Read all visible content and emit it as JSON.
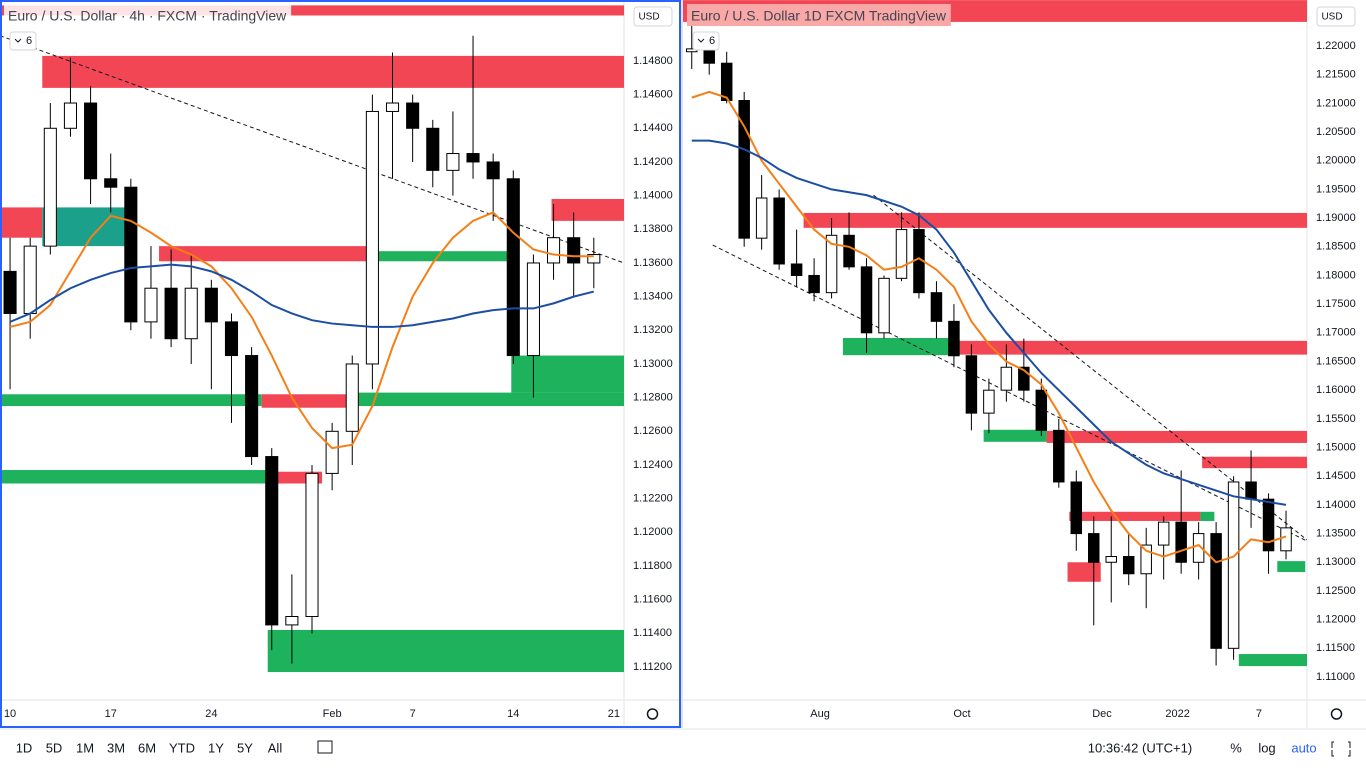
{
  "chart_data": [
    {
      "type": "candlestick",
      "title": "Euro / U.S. Dollar · 4h · FXCM · TradingView",
      "currency": "USD",
      "badge": "6",
      "xlim": [
        -0.5,
        30.5
      ],
      "xticks": [
        {
          "value": 0,
          "label": "10"
        },
        {
          "value": 5,
          "label": "17"
        },
        {
          "value": 10,
          "label": "24"
        },
        {
          "value": 16,
          "label": "Feb"
        },
        {
          "value": 20,
          "label": "7"
        },
        {
          "value": 25,
          "label": "14"
        },
        {
          "value": 30,
          "label": "21"
        }
      ],
      "ylim": [
        1.11004,
        1.15162
      ],
      "yticks": [
        {
          "value": 1.148,
          "label": "1.14800"
        },
        {
          "value": 1.146,
          "label": "1.14600"
        },
        {
          "value": 1.144,
          "label": "1.14400"
        },
        {
          "value": 1.142,
          "label": "1.14200"
        },
        {
          "value": 1.14,
          "label": "1.14000"
        },
        {
          "value": 1.138,
          "label": "1.13800"
        },
        {
          "value": 1.136,
          "label": "1.13600"
        },
        {
          "value": 1.134,
          "label": "1.13400"
        },
        {
          "value": 1.132,
          "label": "1.13200"
        },
        {
          "value": 1.13,
          "label": "1.13000"
        },
        {
          "value": 1.128,
          "label": "1.12800"
        },
        {
          "value": 1.126,
          "label": "1.12600"
        },
        {
          "value": 1.124,
          "label": "1.12400"
        },
        {
          "value": 1.122,
          "label": "1.12200"
        },
        {
          "value": 1.12,
          "label": "1.12000"
        },
        {
          "value": 1.118,
          "label": "1.11800"
        },
        {
          "value": 1.116,
          "label": "1.11600"
        },
        {
          "value": 1.114,
          "label": "1.11400"
        },
        {
          "value": 1.112,
          "label": "1.11200"
        }
      ],
      "up_color": "#ffffff",
      "down_color": "#000000",
      "x": [
        0,
        1,
        2,
        3,
        4,
        5,
        6,
        7,
        8,
        9,
        10,
        11,
        12,
        13,
        14,
        15,
        16,
        17,
        18,
        19,
        20,
        21,
        22,
        23,
        24,
        25,
        26,
        27,
        28,
        29
      ],
      "open": [
        1.1355,
        1.133,
        1.137,
        1.144,
        1.1455,
        1.141,
        1.1405,
        1.1325,
        1.1345,
        1.1315,
        1.1345,
        1.1325,
        1.1305,
        1.1245,
        1.1145,
        1.115,
        1.1235,
        1.126,
        1.13,
        1.145,
        1.1455,
        1.144,
        1.1415,
        1.1425,
        1.142,
        1.141,
        1.1305,
        1.136,
        1.1375,
        1.136
      ],
      "high": [
        1.1375,
        1.1375,
        1.1455,
        1.1482,
        1.1465,
        1.1425,
        1.141,
        1.137,
        1.1368,
        1.1365,
        1.135,
        1.133,
        1.131,
        1.125,
        1.1175,
        1.124,
        1.1265,
        1.1305,
        1.146,
        1.1485,
        1.146,
        1.1445,
        1.145,
        1.1495,
        1.1425,
        1.1415,
        1.1365,
        1.1395,
        1.139,
        1.1375
      ],
      "low": [
        1.1285,
        1.1315,
        1.1365,
        1.1435,
        1.1395,
        1.139,
        1.132,
        1.1315,
        1.131,
        1.13,
        1.1285,
        1.1265,
        1.124,
        1.113,
        1.1122,
        1.114,
        1.1225,
        1.124,
        1.1285,
        1.141,
        1.142,
        1.1405,
        1.14,
        1.141,
        1.1385,
        1.13,
        1.128,
        1.135,
        1.134,
        1.1345
      ],
      "close": [
        1.133,
        1.137,
        1.144,
        1.1455,
        1.141,
        1.1405,
        1.1325,
        1.1345,
        1.1315,
        1.1345,
        1.1325,
        1.1305,
        1.1245,
        1.1145,
        1.115,
        1.1235,
        1.126,
        1.13,
        1.145,
        1.1455,
        1.144,
        1.1415,
        1.1425,
        1.142,
        1.141,
        1.1305,
        1.136,
        1.1375,
        1.136,
        1.1365
      ],
      "series": [
        {
          "color": "#f57f17",
          "values": [
            1.1322,
            1.1325,
            1.1335,
            1.1355,
            1.1375,
            1.1388,
            1.1385,
            1.1378,
            1.137,
            1.1365,
            1.1358,
            1.1345,
            1.1328,
            1.1305,
            1.128,
            1.1262,
            1.125,
            1.1252,
            1.1275,
            1.131,
            1.134,
            1.136,
            1.1375,
            1.1385,
            1.139,
            1.1378,
            1.1368,
            1.1365,
            1.1364,
            1.1364
          ]
        },
        {
          "color": "#1c4ea3",
          "values": [
            1.1325,
            1.133,
            1.1338,
            1.1345,
            1.135,
            1.1354,
            1.1357,
            1.1358,
            1.1359,
            1.1358,
            1.1355,
            1.135,
            1.1343,
            1.1335,
            1.133,
            1.1326,
            1.1324,
            1.1323,
            1.1322,
            1.1322,
            1.1323,
            1.1325,
            1.1327,
            1.133,
            1.1332,
            1.1333,
            1.1333,
            1.1336,
            1.134,
            1.1343
          ]
        }
      ],
      "zones": [
        {
          "x": [
            -0.5,
            30.5
          ],
          "y": [
            1.1507,
            1.1513
          ],
          "color": "#f23645"
        },
        {
          "x": [
            1.6,
            30.5
          ],
          "y": [
            1.1464,
            1.1483
          ],
          "color": "#f23645"
        },
        {
          "x": [
            -0.5,
            1.6
          ],
          "y": [
            1.1375,
            1.1393
          ],
          "color": "#f23645"
        },
        {
          "x": [
            1.6,
            6.1
          ],
          "y": [
            1.137,
            1.1393
          ],
          "color": "#089981"
        },
        {
          "x": [
            7.4,
            18.3
          ],
          "y": [
            1.1361,
            1.137
          ],
          "color": "#f23645"
        },
        {
          "x": [
            18.3,
            24.7
          ],
          "y": [
            1.1361,
            1.1367
          ],
          "color": "#0bab4f"
        },
        {
          "x": [
            26.9,
            30.5
          ],
          "y": [
            1.1385,
            1.1398
          ],
          "color": "#f23645"
        },
        {
          "x": [
            24.9,
            30.5
          ],
          "y": [
            1.1283,
            1.1305
          ],
          "color": "#0bab4f"
        },
        {
          "x": [
            -0.5,
            12.5
          ],
          "y": [
            1.1275,
            1.1282
          ],
          "color": "#0bab4f"
        },
        {
          "x": [
            12.5,
            17.0
          ],
          "y": [
            1.1274,
            1.1282
          ],
          "color": "#f23645"
        },
        {
          "x": [
            17.1,
            30.5
          ],
          "y": [
            1.1275,
            1.1283
          ],
          "color": "#0bab4f"
        },
        {
          "x": [
            -0.5,
            12.7
          ],
          "y": [
            1.1229,
            1.1237
          ],
          "color": "#0bab4f"
        },
        {
          "x": [
            12.9,
            15.5
          ],
          "y": [
            1.1229,
            1.1236
          ],
          "color": "#f23645"
        },
        {
          "x": [
            12.8,
            30.5
          ],
          "y": [
            1.1117,
            1.1142
          ],
          "color": "#0bab4f"
        }
      ],
      "trendlines": [
        {
          "x": [
            -0.5,
            30.5
          ],
          "y": [
            1.1495,
            1.136
          ]
        }
      ]
    },
    {
      "type": "candlestick",
      "title": "Euro / U.S. Dollar  1D  FXCM  TradingView",
      "currency": "USD",
      "badge": "6",
      "xlim": [
        -0.5,
        35.2
      ],
      "xticks": [
        {
          "value": 7.34,
          "label": "Aug"
        },
        {
          "value": 15.46,
          "label": "Oct"
        },
        {
          "value": 23.47,
          "label": "Dec"
        },
        {
          "value": 27.8,
          "label": "2022"
        },
        {
          "value": 32.45,
          "label": "7"
        }
      ],
      "ylim": [
        1.10599,
        1.22802
      ],
      "yticks": [
        {
          "value": 1.22,
          "label": "1.22000"
        },
        {
          "value": 1.215,
          "label": "1.21500"
        },
        {
          "value": 1.21,
          "label": "1.21000"
        },
        {
          "value": 1.205,
          "label": "1.20500"
        },
        {
          "value": 1.2,
          "label": "1.20000"
        },
        {
          "value": 1.195,
          "label": "1.19500"
        },
        {
          "value": 1.19,
          "label": "1.19000"
        },
        {
          "value": 1.185,
          "label": "1.18500"
        },
        {
          "value": 1.18,
          "label": "1.18000"
        },
        {
          "value": 1.175,
          "label": "1.17500"
        },
        {
          "value": 1.17,
          "label": "1.17000"
        },
        {
          "value": 1.165,
          "label": "1.16500"
        },
        {
          "value": 1.16,
          "label": "1.16000"
        },
        {
          "value": 1.155,
          "label": "1.15500"
        },
        {
          "value": 1.15,
          "label": "1.15000"
        },
        {
          "value": 1.145,
          "label": "1.14500"
        },
        {
          "value": 1.14,
          "label": "1.14000"
        },
        {
          "value": 1.135,
          "label": "1.13500"
        },
        {
          "value": 1.13,
          "label": "1.13000"
        },
        {
          "value": 1.125,
          "label": "1.12500"
        },
        {
          "value": 1.12,
          "label": "1.12000"
        },
        {
          "value": 1.115,
          "label": "1.11500"
        },
        {
          "value": 1.11,
          "label": "1.11000"
        }
      ],
      "up_color": "#ffffff",
      "down_color": "#000000",
      "x": [
        0,
        1,
        2,
        3,
        4,
        5,
        6,
        7,
        8,
        9,
        10,
        11,
        12,
        13,
        14,
        15,
        16,
        17,
        18,
        19,
        20,
        21,
        22,
        23,
        24,
        25,
        26,
        27,
        28,
        29,
        30,
        31,
        32,
        33,
        34
      ],
      "open": [
        1.219,
        1.2195,
        1.217,
        1.2105,
        1.1865,
        1.1935,
        1.182,
        1.18,
        1.177,
        1.187,
        1.1815,
        1.17,
        1.1795,
        1.188,
        1.177,
        1.172,
        1.166,
        1.156,
        1.16,
        1.164,
        1.16,
        1.153,
        1.144,
        1.135,
        1.13,
        1.131,
        1.128,
        1.133,
        1.137,
        1.13,
        1.135,
        1.115,
        1.144,
        1.141,
        1.132
      ],
      "high": [
        1.2245,
        1.2225,
        1.219,
        1.212,
        1.1975,
        1.195,
        1.188,
        1.183,
        1.19,
        1.191,
        1.183,
        1.18,
        1.191,
        1.191,
        1.179,
        1.175,
        1.168,
        1.162,
        1.168,
        1.169,
        1.162,
        1.155,
        1.146,
        1.138,
        1.138,
        1.135,
        1.136,
        1.138,
        1.146,
        1.137,
        1.137,
        1.145,
        1.1495,
        1.142,
        1.139
      ],
      "low": [
        1.216,
        1.215,
        1.21,
        1.185,
        1.1845,
        1.181,
        1.178,
        1.1755,
        1.176,
        1.181,
        1.1665,
        1.169,
        1.179,
        1.176,
        1.169,
        1.164,
        1.153,
        1.1525,
        1.158,
        1.158,
        1.152,
        1.143,
        1.132,
        1.119,
        1.123,
        1.126,
        1.122,
        1.127,
        1.128,
        1.127,
        1.112,
        1.113,
        1.136,
        1.128,
        1.1305
      ],
      "close": [
        1.2195,
        1.217,
        1.2105,
        1.1865,
        1.1935,
        1.182,
        1.18,
        1.177,
        1.187,
        1.1815,
        1.17,
        1.1795,
        1.188,
        1.177,
        1.172,
        1.166,
        1.156,
        1.16,
        1.164,
        1.16,
        1.153,
        1.144,
        1.135,
        1.13,
        1.131,
        1.128,
        1.133,
        1.137,
        1.13,
        1.135,
        1.115,
        1.144,
        1.141,
        1.132,
        1.136
      ],
      "series": [
        {
          "color": "#f57f17",
          "values": [
            1.211,
            1.212,
            1.211,
            1.206,
            1.2,
            1.196,
            1.192,
            1.188,
            1.1855,
            1.185,
            1.1835,
            1.181,
            1.1815,
            1.183,
            1.181,
            1.178,
            1.172,
            1.168,
            1.165,
            1.1635,
            1.161,
            1.156,
            1.15,
            1.144,
            1.139,
            1.135,
            1.132,
            1.131,
            1.132,
            1.133,
            1.13,
            1.131,
            1.134,
            1.1335,
            1.1345
          ]
        },
        {
          "color": "#1c4ea3",
          "values": [
            1.2035,
            1.2035,
            1.203,
            1.202,
            1.2005,
            1.1985,
            1.197,
            1.196,
            1.195,
            1.1945,
            1.194,
            1.193,
            1.192,
            1.1905,
            1.188,
            1.184,
            1.179,
            1.174,
            1.17,
            1.1665,
            1.163,
            1.16,
            1.157,
            1.154,
            1.151,
            1.149,
            1.147,
            1.1455,
            1.1445,
            1.1435,
            1.1425,
            1.1415,
            1.141,
            1.1405,
            1.14
          ]
        }
      ],
      "zones": [
        {
          "x": [
            -0.5,
            35.2
          ],
          "y": [
            1.2242,
            1.228
          ],
          "color": "#f23645"
        },
        {
          "x": [
            6.4,
            35.2
          ],
          "y": [
            1.1883,
            1.1909
          ],
          "color": "#f23645"
        },
        {
          "x": [
            8.65,
            14.8
          ],
          "y": [
            1.1661,
            1.1691
          ],
          "color": "#0bab4f"
        },
        {
          "x": [
            14.8,
            35.2
          ],
          "y": [
            1.1662,
            1.1686
          ],
          "color": "#f23645"
        },
        {
          "x": [
            16.7,
            20.3
          ],
          "y": [
            1.151,
            1.1531
          ],
          "color": "#0bab4f"
        },
        {
          "x": [
            20.3,
            35.2
          ],
          "y": [
            1.1508,
            1.1529
          ],
          "color": "#f23645"
        },
        {
          "x": [
            29.2,
            35.2
          ],
          "y": [
            1.1464,
            1.1484
          ],
          "color": "#f23645"
        },
        {
          "x": [
            21.6,
            29.1
          ],
          "y": [
            1.1372,
            1.1388
          ],
          "color": "#f23645"
        },
        {
          "x": [
            29.1,
            29.9
          ],
          "y": [
            1.1372,
            1.1388
          ],
          "color": "#0bab4f"
        },
        {
          "x": [
            21.5,
            23.4
          ],
          "y": [
            1.1266,
            1.13
          ],
          "color": "#f23645"
        },
        {
          "x": [
            33.5,
            35.1
          ],
          "y": [
            1.1283,
            1.1302
          ],
          "color": "#0bab4f"
        },
        {
          "x": [
            31.3,
            35.2
          ],
          "y": [
            1.1119,
            1.114
          ],
          "color": "#0bab4f"
        }
      ],
      "trendlines": [
        {
          "x": [
            1.2,
            35.2
          ],
          "y": [
            1.1853,
            1.1337
          ]
        },
        {
          "x": [
            10.4,
            35.2
          ],
          "y": [
            1.194,
            1.1339
          ]
        }
      ]
    }
  ],
  "toolbar": {
    "ranges": [
      "1D",
      "5D",
      "1M",
      "3M",
      "6M",
      "YTD",
      "1Y",
      "5Y",
      "All"
    ],
    "clock": "10:36:42 (UTC+1)",
    "percent": "%",
    "log": "log",
    "auto": "auto"
  }
}
